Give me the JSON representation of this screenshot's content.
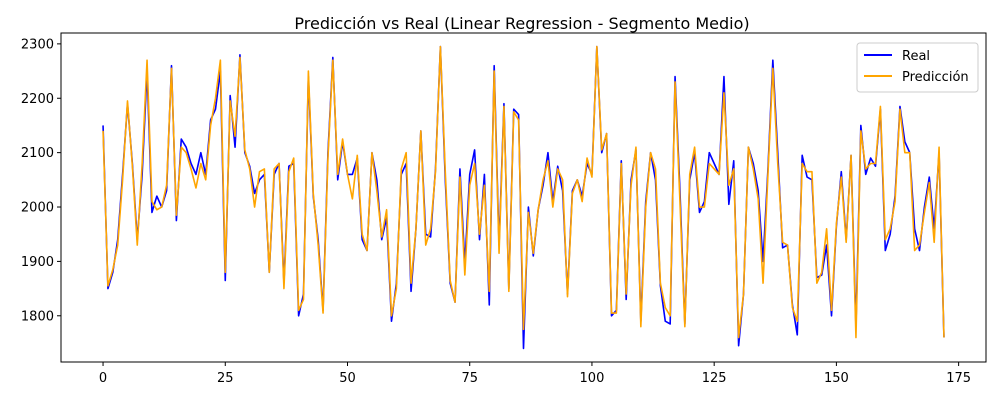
{
  "chart_data": {
    "type": "line",
    "title": "Predicción vs Real (Linear Regression - Segmento Medio)",
    "xlabel": "",
    "ylabel": "",
    "xlim": [
      -8.6,
      180.6
    ],
    "ylim": [
      1715,
      2320
    ],
    "xticks": [
      0,
      25,
      50,
      75,
      100,
      125,
      150,
      175
    ],
    "yticks": [
      1800,
      1900,
      2000,
      2100,
      2200,
      2300
    ],
    "grid": false,
    "legend": "top-right",
    "series": [
      {
        "name": "Real",
        "color": "#0000ff",
        "values": [
          2150,
          1850,
          1880,
          1940,
          2060,
          2190,
          2080,
          1940,
          2060,
          2250,
          1990,
          2020,
          2000,
          2030,
          2260,
          1975,
          2125,
          2110,
          2080,
          2060,
          2100,
          2060,
          2160,
          2180,
          2250,
          1865,
          2205,
          2110,
          2280,
          2100,
          2075,
          2025,
          2050,
          2060,
          1880,
          2060,
          2080,
          1860,
          2075,
          2080,
          1800,
          1840,
          2240,
          2020,
          1940,
          1810,
          2100,
          2275,
          2050,
          2120,
          2060,
          2060,
          2090,
          1940,
          1920,
          2100,
          2050,
          1940,
          1980,
          1790,
          1860,
          2060,
          2080,
          1845,
          1960,
          2140,
          1950,
          1945,
          2070,
          2295,
          2050,
          1860,
          1825,
          2070,
          1895,
          2060,
          2105,
          1940,
          2060,
          1820,
          2260,
          1930,
          2190,
          1850,
          2180,
          2170,
          1740,
          2000,
          1910,
          1995,
          2040,
          2100,
          2010,
          2075,
          2030,
          1840,
          2030,
          2050,
          2020,
          2080,
          2060,
          2295,
          2100,
          2135,
          1800,
          1810,
          2085,
          1830,
          2050,
          2105,
          1790,
          2010,
          2100,
          2050,
          1855,
          1790,
          1785,
          2240,
          2030,
          1785,
          2050,
          2100,
          1990,
          2010,
          2100,
          2080,
          2060,
          2240,
          2005,
          2085,
          1745,
          1840,
          2110,
          2080,
          2030,
          1900,
          2070,
          2270,
          2100,
          1925,
          1930,
          1820,
          1765,
          2095,
          2055,
          2050,
          1870,
          1875,
          1930,
          1800,
          1965,
          2065,
          1940,
          2095,
          1780,
          2150,
          2060,
          2090,
          2075,
          2180,
          1920,
          1950,
          2020,
          2185,
          2120,
          2100,
          1960,
          1920,
          2000,
          2055,
          1960,
          2100,
          1760
        ]
      },
      {
        "name": "Predicción",
        "color": "#ffa500",
        "values": [
          2140,
          1855,
          1885,
          1930,
          2050,
          2195,
          2075,
          1930,
          2080,
          2270,
          2010,
          1995,
          2000,
          2040,
          2255,
          1985,
          2110,
          2100,
          2070,
          2035,
          2080,
          2050,
          2150,
          2200,
          2270,
          1880,
          2195,
          2130,
          2275,
          2105,
          2070,
          2000,
          2065,
          2070,
          1880,
          2070,
          2080,
          1850,
          2065,
          2090,
          1810,
          1830,
          2250,
          2025,
          1930,
          1805,
          2090,
          2270,
          2060,
          2125,
          2060,
          2015,
          2095,
          1950,
          1920,
          2100,
          2030,
          1945,
          1995,
          1800,
          1850,
          2070,
          2100,
          1860,
          1960,
          2140,
          1930,
          1960,
          2065,
          2295,
          2065,
          1865,
          1825,
          2055,
          1875,
          2040,
          2080,
          1950,
          2040,
          1845,
          2250,
          1915,
          2185,
          1845,
          2175,
          2160,
          1775,
          1990,
          1915,
          1995,
          2050,
          2085,
          2000,
          2070,
          2050,
          1835,
          2025,
          2050,
          2010,
          2090,
          2055,
          2295,
          2105,
          2135,
          1805,
          1805,
          2080,
          1840,
          2040,
          2110,
          1780,
          2000,
          2100,
          2070,
          1860,
          1815,
          1800,
          2230,
          2010,
          1780,
          2060,
          2110,
          2000,
          2000,
          2080,
          2070,
          2060,
          2210,
          2040,
          2070,
          1760,
          1840,
          2110,
          2070,
          2015,
          1860,
          2060,
          2255,
          2080,
          1935,
          1930,
          1815,
          1790,
          2080,
          2065,
          2065,
          1860,
          1880,
          1960,
          1810,
          1970,
          2055,
          1935,
          2095,
          1760,
          2140,
          2070,
          2080,
          2080,
          2185,
          1940,
          1960,
          2010,
          2180,
          2100,
          2100,
          1920,
          1930,
          1990,
          2045,
          1935,
          2110,
          1760
        ]
      }
    ]
  }
}
